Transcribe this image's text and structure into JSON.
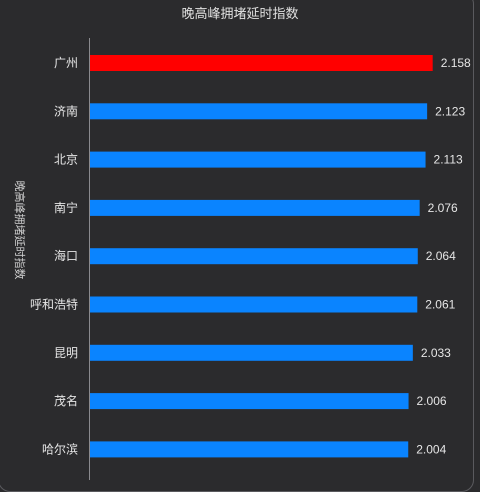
{
  "chart_data": {
    "type": "bar",
    "orientation": "horizontal",
    "title": "晚高峰拥堵延时指数",
    "ylabel": "晚高峰拥堵延时指数",
    "xlim": [
      0,
      2.5
    ],
    "grid": false,
    "categories": [
      "广州",
      "济南",
      "北京",
      "南宁",
      "海口",
      "呼和浩特",
      "昆明",
      "茂名",
      "哈尔滨"
    ],
    "values": [
      2.158,
      2.123,
      2.113,
      2.076,
      2.064,
      2.061,
      2.033,
      2.006,
      2.004
    ],
    "value_labels": [
      "2.158",
      "2.123",
      "2.113",
      "2.076",
      "2.064",
      "2.061",
      "2.033",
      "2.006",
      "2.004"
    ],
    "bar_colors": [
      "#ff0000",
      "#0a84ff",
      "#0a84ff",
      "#0a84ff",
      "#0a84ff",
      "#0a84ff",
      "#0a84ff",
      "#0a84ff",
      "#0a84ff"
    ]
  }
}
